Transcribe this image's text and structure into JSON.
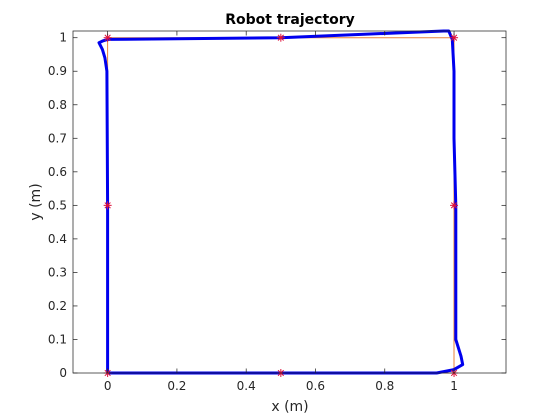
{
  "chart_data": {
    "type": "line",
    "title": "Robot trajectory",
    "xlabel": "x (m)",
    "ylabel": "y (m)",
    "xlim": [
      -0.1,
      1.15
    ],
    "ylim": [
      0,
      1.02
    ],
    "xticks": [
      "0",
      "0.2",
      "0.4",
      "0.6",
      "0.8",
      "1"
    ],
    "yticks": [
      "0",
      "0.1",
      "0.2",
      "0.3",
      "0.4",
      "0.5",
      "0.6",
      "0.7",
      "0.8",
      "0.9",
      "1"
    ],
    "grid": false,
    "series": [
      {
        "role": "reference",
        "color": "#e8823a",
        "x": [
          0,
          1,
          1,
          0,
          0
        ],
        "y": [
          0,
          0,
          1,
          1,
          0
        ]
      },
      {
        "role": "actual",
        "color": "#0000ee",
        "x": [
          0,
          0.05,
          0.25,
          0.5,
          0.75,
          0.95,
          1.0,
          1.025,
          1.02,
          1.005,
          1.005,
          1.0,
          1.0,
          0.995,
          0.985,
          0.97,
          0.5,
          0.0,
          -0.015,
          -0.025,
          -0.015,
          -0.008,
          -0.002,
          0.0,
          0.0
        ],
        "y": [
          0,
          0,
          0,
          0,
          0,
          0,
          0.01,
          0.025,
          0.05,
          0.1,
          0.5,
          0.7,
          0.9,
          0.995,
          1.02,
          1.02,
          1.0,
          0.995,
          0.99,
          0.985,
          0.965,
          0.94,
          0.9,
          0.5,
          0
        ]
      },
      {
        "role": "waypoints",
        "color": "#e0103a",
        "marker": "*",
        "x": [
          0,
          0.5,
          1,
          1,
          1,
          0.5,
          0,
          0
        ],
        "y": [
          0,
          0,
          0,
          0.5,
          1,
          1,
          1,
          0.5
        ]
      }
    ]
  }
}
